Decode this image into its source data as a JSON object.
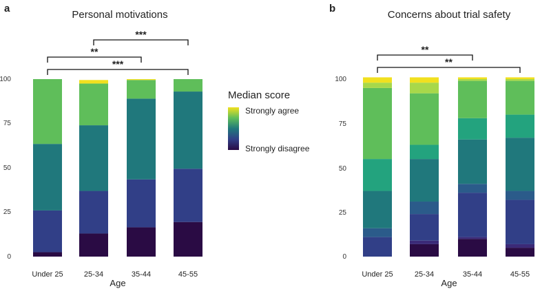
{
  "chart_data": [
    {
      "panel": "a",
      "type": "bar",
      "stacked": true,
      "title": "Personal motivations",
      "xlabel": "Age",
      "ylabel": "",
      "ylim": [
        0,
        100
      ],
      "yticks": [
        "0",
        "25",
        "50",
        "75",
        "100"
      ],
      "categories": [
        "Under 25",
        "25-34",
        "35-44",
        "45-55"
      ],
      "series": [
        {
          "name": "1",
          "color": "#2a0b44",
          "values": [
            2.5,
            13,
            16.5,
            19.5
          ]
        },
        {
          "name": "2",
          "color": "#313f87",
          "values": [
            23.5,
            24,
            27,
            30
          ]
        },
        {
          "name": "3",
          "color": "#20787c",
          "values": [
            37.5,
            37,
            45.5,
            43.5
          ]
        },
        {
          "name": "4",
          "color": "#5fbe5a",
          "values": [
            36.5,
            23.5,
            10.5,
            7
          ]
        },
        {
          "name": "5",
          "color": "#f1e01f",
          "values": [
            0,
            2,
            0.5,
            0
          ]
        }
      ],
      "significance": [
        {
          "from": "25-34",
          "to": "45-55",
          "label": "***"
        },
        {
          "from": "Under 25",
          "to": "35-44",
          "label": "**"
        },
        {
          "from": "Under 25",
          "to": "45-55",
          "label": "***"
        }
      ]
    },
    {
      "panel": "b",
      "type": "bar",
      "stacked": true,
      "title": "Concerns about trial safety",
      "xlabel": "Age",
      "ylabel": "",
      "ylim": [
        0,
        100
      ],
      "yticks": [
        "0",
        "25",
        "50",
        "75",
        "100"
      ],
      "categories": [
        "Under 25",
        "25-34",
        "35-44",
        "45-55"
      ],
      "series": [
        {
          "name": "1",
          "color": "#2a0b44",
          "values": [
            0,
            7,
            10,
            5
          ]
        },
        {
          "name": "2",
          "color": "#3b2a78",
          "values": [
            0,
            2,
            1,
            2
          ]
        },
        {
          "name": "3",
          "color": "#313f87",
          "values": [
            11,
            15,
            25,
            25
          ]
        },
        {
          "name": "4",
          "color": "#2b5b8a",
          "values": [
            5,
            7,
            5,
            5
          ]
        },
        {
          "name": "5",
          "color": "#20787c",
          "values": [
            21,
            24,
            25,
            30
          ]
        },
        {
          "name": "6",
          "color": "#23a37e",
          "values": [
            18,
            8,
            12,
            13
          ]
        },
        {
          "name": "7",
          "color": "#5fbe5a",
          "values": [
            40,
            29,
            21,
            19
          ]
        },
        {
          "name": "8",
          "color": "#a8d84a",
          "values": [
            3,
            6,
            1,
            1
          ]
        },
        {
          "name": "9",
          "color": "#f1e01f",
          "values": [
            3,
            3,
            1,
            1
          ]
        }
      ],
      "significance": [
        {
          "from": "Under 25",
          "to": "35-44",
          "label": "**"
        },
        {
          "from": "Under 25",
          "to": "45-55",
          "label": "**"
        }
      ]
    }
  ],
  "legend": {
    "title": "Median score",
    "top_label": "Strongly agree",
    "bottom_label": "Strongly disagree",
    "gradient": [
      "#f1e01f",
      "#5fbe5a",
      "#20787c",
      "#313f87",
      "#2a0b44"
    ]
  }
}
